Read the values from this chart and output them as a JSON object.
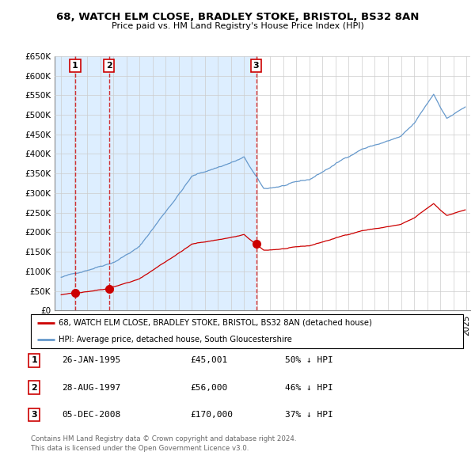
{
  "title": "68, WATCH ELM CLOSE, BRADLEY STOKE, BRISTOL, BS32 8AN",
  "subtitle": "Price paid vs. HM Land Registry's House Price Index (HPI)",
  "ylim": [
    0,
    650000
  ],
  "yticks": [
    0,
    50000,
    100000,
    150000,
    200000,
    250000,
    300000,
    350000,
    400000,
    450000,
    500000,
    550000,
    600000,
    650000
  ],
  "ytick_labels": [
    "£0",
    "£50K",
    "£100K",
    "£150K",
    "£200K",
    "£250K",
    "£300K",
    "£350K",
    "£400K",
    "£450K",
    "£500K",
    "£550K",
    "£600K",
    "£650K"
  ],
  "xlim_start": 1993.5,
  "xlim_end": 2025.3,
  "transactions": [
    {
      "num": 1,
      "date_str": "26-JAN-1995",
      "date_x": 1995.07,
      "price": 45001,
      "pct": "50%",
      "dir": "↓"
    },
    {
      "num": 2,
      "date_str": "28-AUG-1997",
      "date_x": 1997.66,
      "price": 56000,
      "pct": "46%",
      "dir": "↓"
    },
    {
      "num": 3,
      "date_str": "05-DEC-2008",
      "date_x": 2008.92,
      "price": 170000,
      "pct": "37%",
      "dir": "↓"
    }
  ],
  "legend_line1": "68, WATCH ELM CLOSE, BRADLEY STOKE, BRISTOL, BS32 8AN (detached house)",
  "legend_line2": "HPI: Average price, detached house, South Gloucestershire",
  "footer1": "Contains HM Land Registry data © Crown copyright and database right 2024.",
  "footer2": "This data is licensed under the Open Government Licence v3.0.",
  "red_color": "#cc0000",
  "blue_color": "#6699cc",
  "shaded_color": "#ddeeff",
  "hatch_color": "#aabbcc",
  "bg_color": "#ffffff",
  "grid_color": "#cccccc"
}
